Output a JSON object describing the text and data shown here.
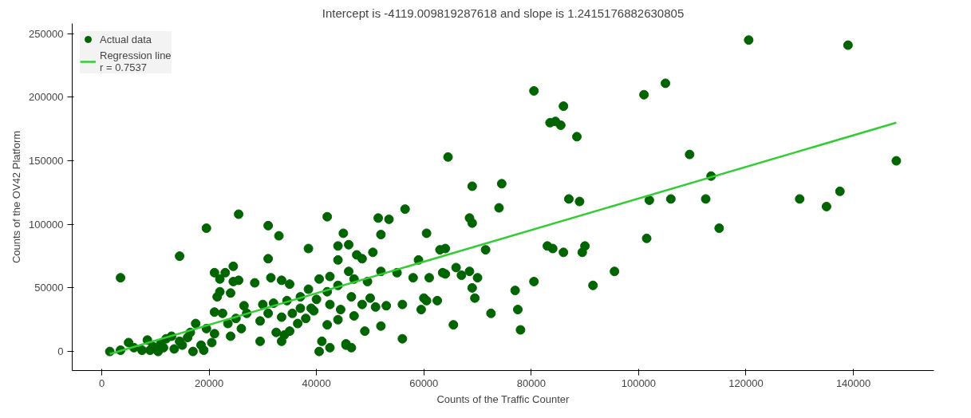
{
  "chart_data": {
    "type": "scatter",
    "title": "Intercept is -4119.009819287618 and slope is 1.2415176882630805",
    "xlabel": "Counts of the Traffic Counter",
    "ylabel": "Counts of the OV42 Platform",
    "xlim": [
      -5500,
      155000
    ],
    "ylim": [
      -15000,
      258000
    ],
    "xticks": [
      0,
      20000,
      40000,
      60000,
      80000,
      100000,
      120000,
      140000
    ],
    "yticks": [
      0,
      50000,
      100000,
      150000,
      200000,
      250000
    ],
    "legend": "top left",
    "grid": false,
    "series": [
      {
        "name": "Actual data",
        "marker": "circle",
        "color": "#006400",
        "x": [
          3500,
          14500,
          19500,
          25500,
          31000,
          33000,
          31000,
          38500,
          42000,
          44000,
          45000,
          64500,
          69000,
          68500,
          69000,
          74500,
          74000,
          71500,
          70000,
          69000,
          69500,
          65500,
          72500,
          77000,
          78000,
          77500,
          80500,
          83500,
          84500,
          85500,
          86000,
          88500,
          83000,
          84000,
          86000,
          87000,
          89000,
          89500,
          90000,
          91500,
          95500,
          80500,
          101000,
          105000,
          101500,
          102000,
          106000,
          109500,
          112500,
          113500,
          115000,
          120500,
          130000,
          135000,
          137500,
          139000,
          148000,
          56500,
          51500,
          53500,
          52000,
          60500,
          59000,
          58000,
          55000,
          52000,
          50500,
          61000,
          63000,
          64000,
          63500,
          60000,
          60500,
          62500,
          56000,
          53000,
          51000,
          56000,
          52000,
          59500,
          64000,
          66000,
          67000,
          68500,
          46000,
          47500,
          48500,
          44000,
          42500,
          46000,
          47000,
          49500,
          44000,
          42000,
          46500,
          48500,
          50000,
          40000,
          42500,
          44500,
          47000,
          44000,
          42000,
          49000,
          45500,
          46500,
          45500,
          41000,
          42500,
          40500,
          38000,
          39500,
          36500,
          35500,
          37000,
          39000,
          40500,
          38500,
          37000,
          21000,
          22000,
          23000,
          24500,
          24500,
          25500,
          22000,
          24000,
          21500,
          26500,
          28500,
          31500,
          33500,
          35000,
          30000,
          32000,
          34500,
          31000,
          33500,
          29500,
          32500,
          34000,
          35000,
          29500,
          33500,
          21000,
          22500,
          23500,
          26000,
          24000,
          21000,
          19500,
          25000,
          27000,
          1500,
          3500,
          5000,
          6000,
          7500,
          8500,
          9500,
          10500,
          11000,
          12000,
          13500,
          14500,
          15000,
          16000,
          17000,
          17500,
          18500,
          19000,
          20500,
          16500,
          13000,
          11500,
          9000
        ],
        "values": [
          58000,
          75000,
          97000,
          108000,
          99000,
          91000,
          73000,
          81000,
          106000,
          83000,
          93000,
          153000,
          130000,
          105000,
          101000,
          132000,
          113000,
          80000,
          58000,
          50000,
          42000,
          21000,
          30000,
          48000,
          17000,
          33000,
          205000,
          180000,
          181000,
          178000,
          193000,
          169000,
          83000,
          81000,
          78000,
          120000,
          118000,
          78000,
          83000,
          52000,
          63000,
          55000,
          202000,
          211000,
          89000,
          119000,
          120000,
          155000,
          120000,
          138000,
          97000,
          245000,
          120000,
          114000,
          126000,
          241000,
          150000,
          112000,
          105000,
          104000,
          92000,
          93000,
          72000,
          58000,
          62000,
          63000,
          78000,
          58000,
          80000,
          81000,
          62000,
          42000,
          40000,
          40000,
          37000,
          36000,
          35000,
          10000,
          20000,
          33000,
          61000,
          66000,
          60000,
          63000,
          84000,
          76000,
          73000,
          72000,
          59000,
          63000,
          57000,
          55000,
          52000,
          47000,
          43000,
          37000,
          42000,
          41000,
          37000,
          33000,
          28000,
          25000,
          21000,
          16000,
          6000,
          3000,
          5000,
          8000,
          3000,
          0,
          26000,
          32000,
          22000,
          30000,
          34000,
          34000,
          57000,
          49000,
          43000,
          62000,
          57000,
          62000,
          67000,
          55000,
          56000,
          47000,
          46000,
          43000,
          36000,
          54000,
          58000,
          56000,
          53000,
          37000,
          38000,
          40000,
          30000,
          27000,
          24000,
          15000,
          13000,
          16000,
          8000,
          8000,
          31000,
          30000,
          22000,
          18000,
          12000,
          14000,
          18000,
          26000,
          30000,
          0,
          1000,
          7000,
          3000,
          1000,
          9000,
          4000,
          0,
          6000,
          10000,
          2000,
          8000,
          5000,
          11000,
          0,
          22000,
          5000,
          1000,
          7000,
          15000,
          12000,
          3000,
          1000
        ]
      },
      {
        "name": "Regression line\nr = 0.7537",
        "type": "line",
        "color": "#32cd32",
        "x": [
          1500,
          148000
        ],
        "values": [
          -2000,
          180000
        ]
      }
    ]
  }
}
